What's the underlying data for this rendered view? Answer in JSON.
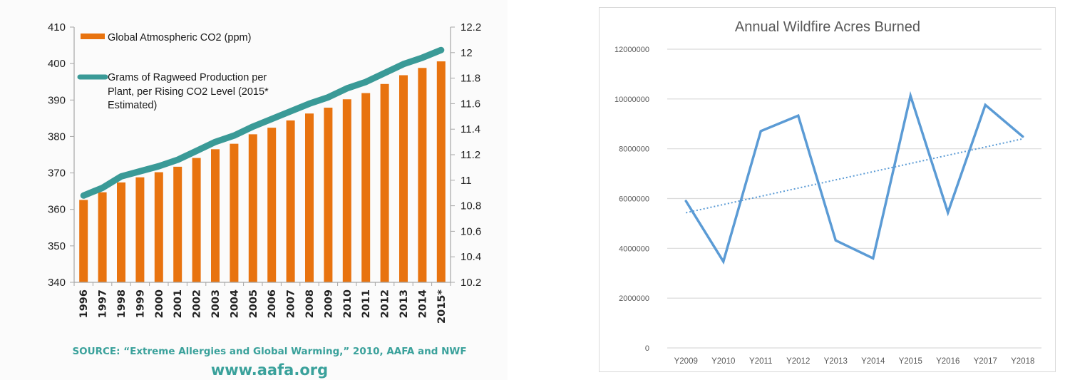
{
  "chart_data": [
    {
      "type": "bar",
      "title": "",
      "categories": [
        "1996",
        "1997",
        "1998",
        "1999",
        "2000",
        "2001",
        "2002",
        "2003",
        "2004",
        "2005",
        "2006",
        "2007",
        "2008",
        "2009",
        "2010",
        "2011",
        "2012",
        "2013",
        "2014",
        "2015*"
      ],
      "series": [
        {
          "name": "Global Atmospheric CO2 (ppm)",
          "type": "bar",
          "axis": "left",
          "color": "#e8730f",
          "values": [
            362.6,
            364.7,
            367.4,
            368.8,
            370.2,
            371.7,
            374.1,
            376.5,
            378.0,
            380.6,
            382.4,
            384.4,
            386.3,
            387.9,
            390.2,
            391.9,
            394.4,
            396.8,
            398.8,
            400.6
          ]
        },
        {
          "name": "Grams of Ragweed  Production per Plant, per Rising CO2 Level (2015* Estimated)",
          "legend_lines": [
            "Grams of Ragweed  Production per",
            "Plant, per Rising CO2 Level (2015*",
            "Estimated)"
          ],
          "type": "line",
          "axis": "right",
          "color": "#3a9a97",
          "values": [
            10.88,
            10.94,
            11.03,
            11.07,
            11.11,
            11.16,
            11.23,
            11.3,
            11.35,
            11.42,
            11.48,
            11.54,
            11.6,
            11.65,
            11.72,
            11.77,
            11.84,
            11.91,
            11.96,
            12.02
          ]
        }
      ],
      "ylim": [
        340,
        410
      ],
      "yticks": [
        "340",
        "350",
        "360",
        "370",
        "380",
        "390",
        "400",
        "410"
      ],
      "y2lim": [
        10.2,
        12.2
      ],
      "y2ticks": [
        "10.2",
        "10.4",
        "10.6",
        "10.8",
        "11",
        "11.2",
        "11.4",
        "11.6",
        "11.8",
        "12",
        "12.2"
      ],
      "xlabel": "",
      "ylabel": "",
      "legend_position": "top-left",
      "grid": false,
      "source": "SOURCE: “Extreme Allergies and Global Warming,” 2010, AAFA and NWF",
      "website": "www.aafa.org"
    },
    {
      "type": "line",
      "title": "Annual Wildfire Acres Burned",
      "categories": [
        "Y2009",
        "Y2010",
        "Y2011",
        "Y2012",
        "Y2013",
        "Y2014",
        "Y2015",
        "Y2016",
        "Y2017",
        "Y2018"
      ],
      "series": [
        {
          "name": "Acres Burned",
          "color": "#5b9bd5",
          "values": [
            5900000,
            3470000,
            8710000,
            9330000,
            4320000,
            3600000,
            10130000,
            5440000,
            9760000,
            8490000
          ]
        }
      ],
      "trendline": {
        "type": "linear",
        "style": "dotted",
        "color": "#5b9bd5",
        "start": 5430000,
        "end": 8400000
      },
      "ylim": [
        0,
        12000000
      ],
      "yticks": [
        "0",
        "2000000",
        "4000000",
        "6000000",
        "8000000",
        "10000000",
        "12000000"
      ],
      "xlabel": "",
      "ylabel": "",
      "grid": true,
      "legend_position": "none"
    }
  ]
}
